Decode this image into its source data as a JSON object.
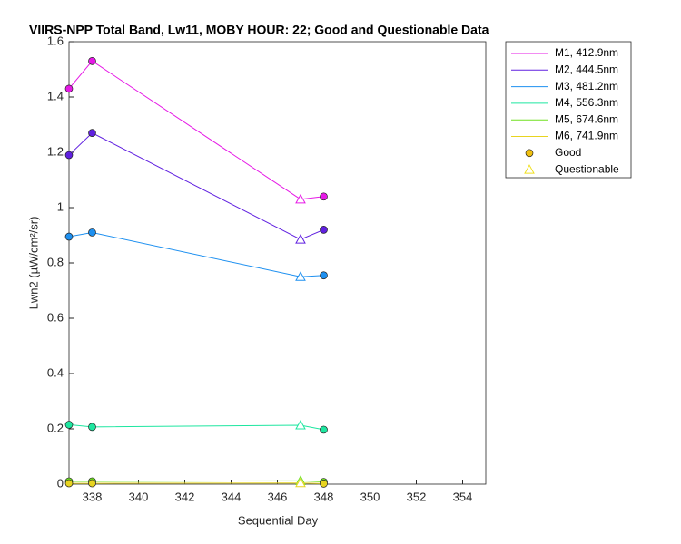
{
  "chart_data": {
    "type": "line",
    "title": "VIIRS-NPP Total Band, Lw11, MOBY HOUR: 22;  Good and Questionable Data",
    "x_label": "Sequential Day",
    "y_label": "Lwn2 (µW/cm²/sr)",
    "x": [
      337,
      338,
      347,
      348
    ],
    "questionable": [
      false,
      false,
      true,
      false
    ],
    "series": [
      {
        "name": "M1, 412.9nm",
        "color": "#e619e6",
        "values": [
          1.43,
          1.53,
          1.03,
          1.04
        ]
      },
      {
        "name": "M2, 444.5nm",
        "color": "#6020e0",
        "values": [
          1.19,
          1.27,
          0.885,
          0.92
        ]
      },
      {
        "name": "M3, 481.2nm",
        "color": "#1e90f0",
        "values": [
          0.895,
          0.91,
          0.75,
          0.755
        ]
      },
      {
        "name": "M4, 556.3nm",
        "color": "#1ee6a0",
        "values": [
          0.215,
          0.207,
          0.213,
          0.197
        ]
      },
      {
        "name": "M5, 674.6nm",
        "color": "#70e020",
        "values": [
          0.01,
          0.01,
          0.012,
          0.008
        ]
      },
      {
        "name": "M6, 741.9nm",
        "color": "#e8d420",
        "values": [
          0.003,
          0.003,
          0.004,
          0.002
        ]
      }
    ],
    "marker_legend": [
      {
        "name": "Good",
        "color": "#f0c010"
      },
      {
        "name": "Questionable",
        "color": "#f0e020"
      }
    ],
    "xlim": [
      337,
      355
    ],
    "xticks": [
      338,
      340,
      342,
      344,
      346,
      348,
      350,
      352,
      354
    ],
    "ylim": [
      0,
      1.6
    ],
    "yticks": [
      0,
      0.2,
      0.4,
      0.6,
      0.8,
      1,
      1.2,
      1.4,
      1.6
    ],
    "grid": false
  }
}
